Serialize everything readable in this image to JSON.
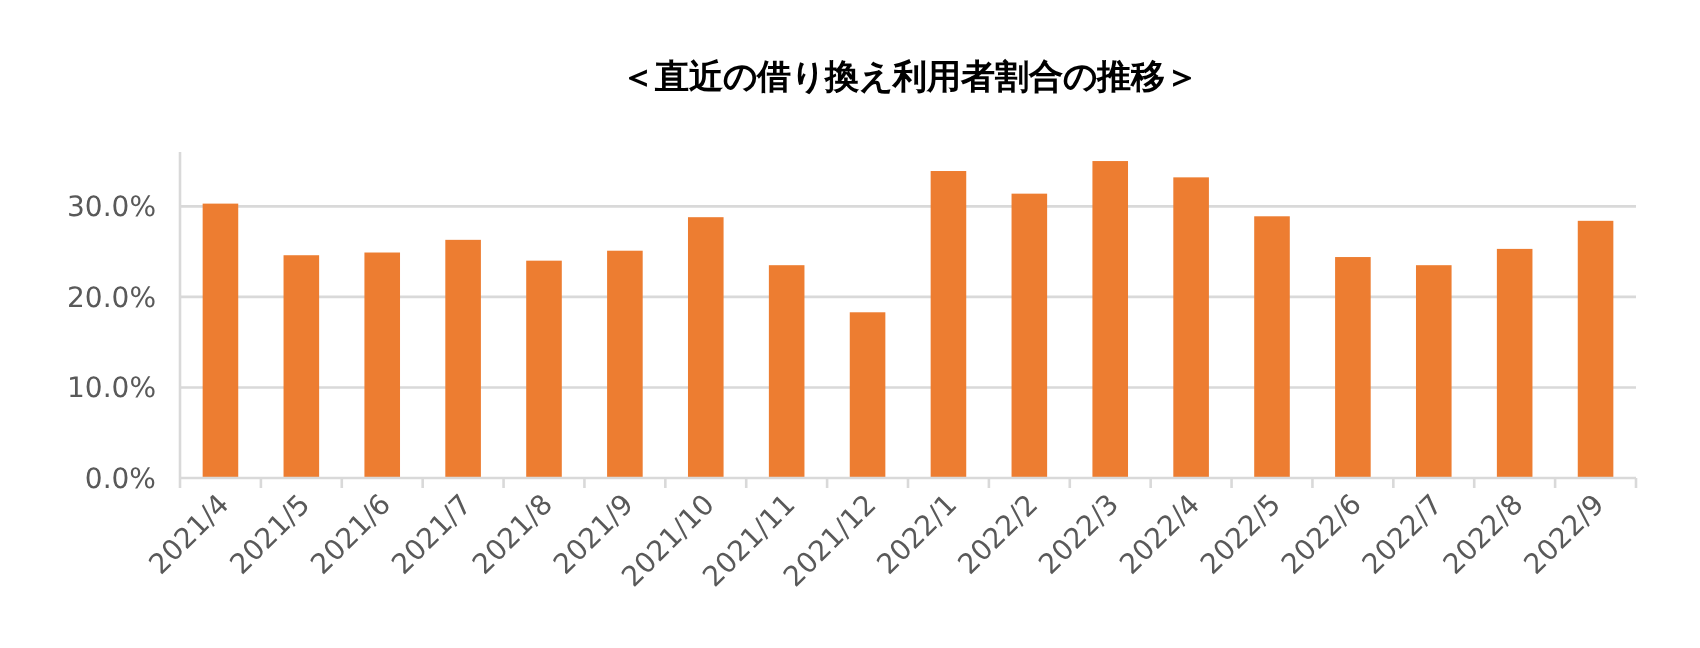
{
  "chart_data": {
    "type": "bar",
    "title": "＜直近の借り換え利用者割合の推移＞",
    "categories": [
      "2021/4",
      "2021/5",
      "2021/6",
      "2021/7",
      "2021/8",
      "2021/9",
      "2021/10",
      "2021/11",
      "2021/12",
      "2022/1",
      "2022/2",
      "2022/3",
      "2022/4",
      "2022/5",
      "2022/6",
      "2022/7",
      "2022/8",
      "2022/9"
    ],
    "values": [
      30.3,
      24.6,
      24.9,
      26.3,
      24.0,
      25.1,
      28.8,
      23.5,
      18.3,
      33.9,
      31.4,
      35.0,
      33.2,
      28.9,
      24.4,
      23.5,
      25.3,
      28.4
    ],
    "color": "#ed7d31",
    "ylim": [
      0,
      36
    ],
    "yticks": [
      {
        "value": 0,
        "label": "0.0%"
      },
      {
        "value": 10,
        "label": "10.0%"
      },
      {
        "value": 20,
        "label": "20.0%"
      },
      {
        "value": 30,
        "label": "30.0%"
      }
    ],
    "grid": "y"
  }
}
